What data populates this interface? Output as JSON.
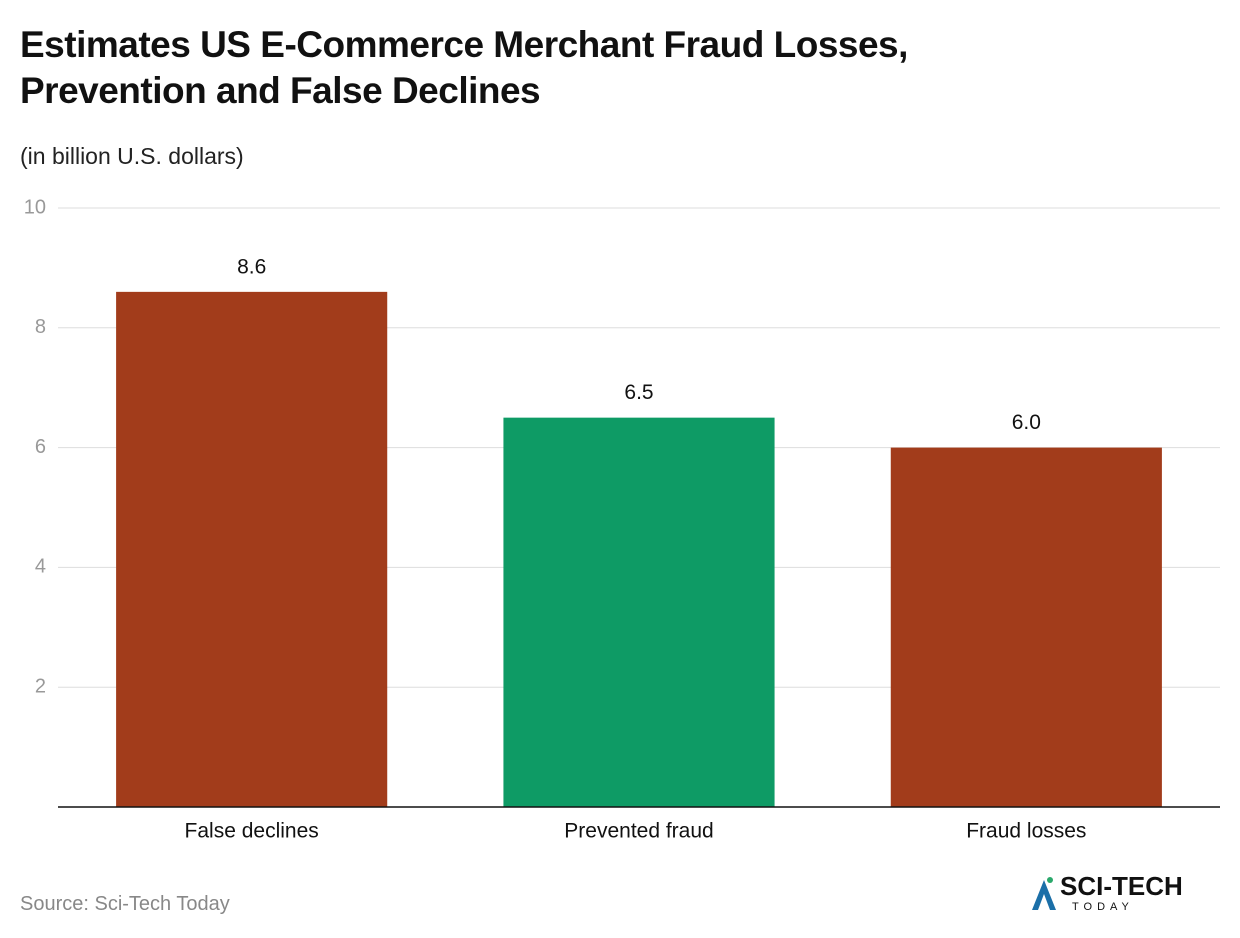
{
  "chart_data": {
    "type": "bar",
    "title": "Estimates US E-Commerce Merchant Fraud Losses, Prevention and False Declines",
    "subtitle": "(in billion U.S. dollars)",
    "categories": [
      "False declines",
      "Prevented fraud",
      "Fraud losses"
    ],
    "values": [
      8.6,
      6.5,
      6
    ],
    "value_labels": [
      "8.6",
      "6.5",
      "6.0"
    ],
    "colors": [
      "#a23c1b",
      "#0e9b65",
      "#a23c1b"
    ],
    "ylim": [
      0,
      10
    ],
    "yticks": [
      2,
      4,
      6,
      8,
      10
    ],
    "grid": true,
    "source": "Source: Sci-Tech Today",
    "logo": {
      "name": "SCI-TECH",
      "tagline": "TODAY"
    }
  }
}
